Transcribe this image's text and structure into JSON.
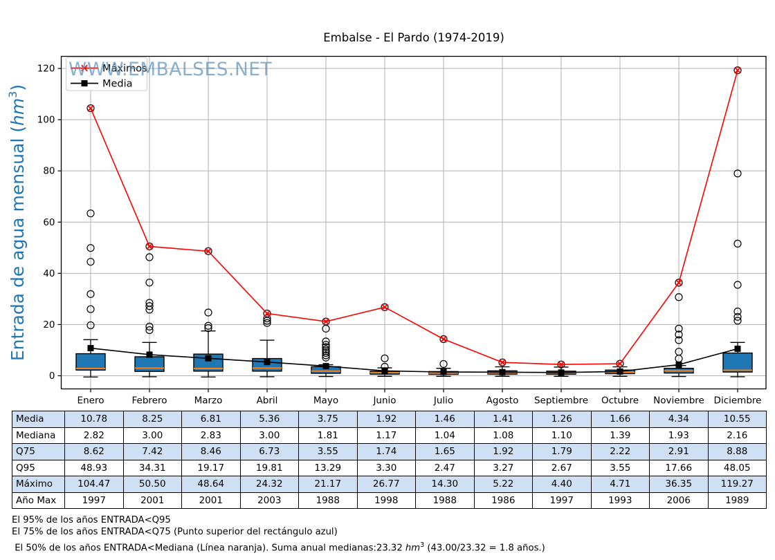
{
  "title": "Embalse - El Pardo (1974-2019)",
  "watermark": "WWW.EMBALSES.NET",
  "colors": {
    "box_fill": "#1f77b4",
    "box_edge": "#000000",
    "median_line": "#ff7f0e",
    "maximos_line": "#ff0000",
    "media_line": "#000000",
    "grid": "#b0b0b0",
    "ylabel": "#1f77b4",
    "watermark": "#5b92ba",
    "legend_edge": "#cccccc",
    "table_shade": "#cfe0f4",
    "table_plain": "#ffffff"
  },
  "chart_data": {
    "type": "boxplot",
    "title": "Embalse - El Pardo (1974-2019)",
    "ylabel_pre": "Entrada de agua mensual (",
    "ylabel_unit": "hm",
    "ylabel_sup": "3",
    "ylabel_post": ")",
    "ylim": [
      -5.1,
      124.7
    ],
    "yticks": [
      0,
      20,
      40,
      60,
      80,
      100,
      120
    ],
    "grid": true,
    "legend_position": "upper left",
    "categories": [
      "Enero",
      "Febrero",
      "Marzo",
      "Abril",
      "Mayo",
      "Junio",
      "Julio",
      "Agosto",
      "Septiembre",
      "Octubre",
      "Noviembre",
      "Diciembre"
    ],
    "legend": [
      {
        "label": "Máximos",
        "color": "#ff0000",
        "marker": "x"
      },
      {
        "label": "Media",
        "color": "#000000",
        "marker": "square"
      }
    ],
    "series": [
      {
        "name": "Máximos",
        "values": [
          104.47,
          50.5,
          48.64,
          24.32,
          21.17,
          26.77,
          14.3,
          5.22,
          4.4,
          4.71,
          36.35,
          119.27
        ]
      },
      {
        "name": "Media",
        "values": [
          10.78,
          8.25,
          6.81,
          5.36,
          3.75,
          1.92,
          1.46,
          1.41,
          1.26,
          1.66,
          4.34,
          10.55
        ]
      }
    ],
    "boxes": [
      {
        "q1": 2.2,
        "med": 2.82,
        "q3": 8.62,
        "whislo": -0.5,
        "whishi": 14.1,
        "outliers": [
          19.7,
          26.0,
          31.9,
          44.5,
          49.9,
          63.4,
          104.47
        ]
      },
      {
        "q1": 1.7,
        "med": 3.0,
        "q3": 7.42,
        "whislo": -0.4,
        "whishi": 13.0,
        "outliers": [
          17.8,
          19.2,
          25.8,
          27.2,
          28.5,
          36.4,
          46.3,
          50.5
        ]
      },
      {
        "q1": 1.8,
        "med": 2.83,
        "q3": 8.46,
        "whislo": -0.5,
        "whishi": 17.5,
        "outliers": [
          18.6,
          19.5,
          24.7,
          48.64
        ]
      },
      {
        "q1": 1.8,
        "med": 3.0,
        "q3": 6.73,
        "whislo": -0.4,
        "whishi": 13.9,
        "outliers": [
          20.6,
          21.5,
          22.4,
          24.32
        ]
      },
      {
        "q1": 0.95,
        "med": 1.81,
        "q3": 3.55,
        "whislo": -0.3,
        "whishi": 4.3,
        "outliers": [
          7.1,
          8.0,
          8.9,
          9.6,
          10.3,
          11.2,
          12.1,
          13.4,
          18.4,
          21.17
        ]
      },
      {
        "q1": 0.62,
        "med": 1.17,
        "q3": 1.74,
        "whislo": -0.2,
        "whishi": 3.1,
        "outliers": [
          3.5,
          6.8,
          26.77
        ]
      },
      {
        "q1": 0.55,
        "med": 1.04,
        "q3": 1.65,
        "whislo": -0.2,
        "whishi": 2.9,
        "outliers": [
          4.6,
          14.3
        ]
      },
      {
        "q1": 0.62,
        "med": 1.08,
        "q3": 1.92,
        "whislo": -0.2,
        "whishi": 3.5,
        "outliers": [
          5.22
        ]
      },
      {
        "q1": 0.6,
        "med": 1.1,
        "q3": 1.79,
        "whislo": -0.2,
        "whishi": 3.4,
        "outliers": [
          4.4
        ]
      },
      {
        "q1": 0.8,
        "med": 1.39,
        "q3": 2.22,
        "whislo": -0.2,
        "whishi": 3.5,
        "outliers": [
          4.71
        ]
      },
      {
        "q1": 1.05,
        "med": 1.93,
        "q3": 2.91,
        "whislo": -0.3,
        "whishi": 4.0,
        "outliers": [
          6.7,
          9.4,
          13.9,
          16.1,
          18.4,
          30.7,
          36.35
        ]
      },
      {
        "q1": 1.45,
        "med": 2.16,
        "q3": 8.88,
        "whislo": -0.4,
        "whishi": 13.0,
        "outliers": [
          21.5,
          23.0,
          25.1,
          35.5,
          51.6,
          79.0,
          119.27
        ]
      }
    ]
  },
  "table": {
    "row_labels": [
      "Media",
      "Mediana",
      "Q75",
      "Q95",
      "Máximo",
      "Año Max"
    ],
    "rows": [
      [
        "10.78",
        "8.25",
        "6.81",
        "5.36",
        "3.75",
        "1.92",
        "1.46",
        "1.41",
        "1.26",
        "1.66",
        "4.34",
        "10.55"
      ],
      [
        "2.82",
        "3.00",
        "2.83",
        "3.00",
        "1.81",
        "1.17",
        "1.04",
        "1.08",
        "1.10",
        "1.39",
        "1.93",
        "2.16"
      ],
      [
        "8.62",
        "7.42",
        "8.46",
        "6.73",
        "3.55",
        "1.74",
        "1.65",
        "1.92",
        "1.79",
        "2.22",
        "2.91",
        "8.88"
      ],
      [
        "48.93",
        "34.31",
        "19.17",
        "19.81",
        "13.29",
        "3.30",
        "2.47",
        "3.27",
        "2.67",
        "3.55",
        "17.66",
        "48.05"
      ],
      [
        "104.47",
        "50.50",
        "48.64",
        "24.32",
        "21.17",
        "26.77",
        "14.30",
        "5.22",
        "4.40",
        "4.71",
        "36.35",
        "119.27"
      ],
      [
        "1997",
        "2001",
        "2001",
        "2003",
        "1988",
        "1998",
        "1988",
        "1986",
        "1997",
        "1993",
        "2006",
        "1989"
      ]
    ]
  },
  "footnotes": {
    "line1": "El 95% de los años ENTRADA<Q95",
    "line2": "El 75% de los años ENTRADA<Q75 (Punto superior del rectángulo azul)",
    "line3_pre": " El 50% de los años ENTRADA<Mediana (Línea naranja). Suma anual medianas:23.32 ",
    "line3_unit": "hm",
    "line3_sup": "3",
    "line3_post": " (43.00/23.32 = 1.8 años.)"
  }
}
